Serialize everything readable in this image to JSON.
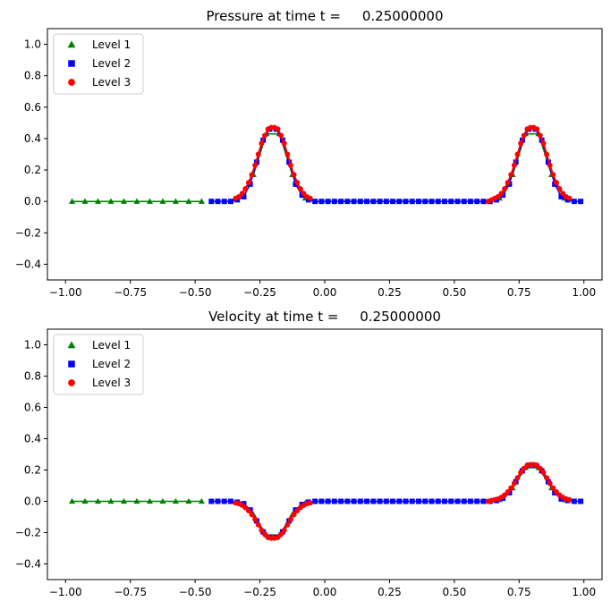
{
  "chart_data": [
    {
      "type": "line",
      "title": "Pressure at time t =     0.25000000",
      "xlabel": "",
      "ylabel": "",
      "xlim": [
        -1.07,
        1.07
      ],
      "ylim": [
        -0.5,
        1.1
      ],
      "xticks": [
        -1.0,
        -0.75,
        -0.5,
        -0.25,
        0.0,
        0.25,
        0.5,
        0.75,
        1.0
      ],
      "xtick_labels": [
        "−1.00",
        "−0.75",
        "−0.50",
        "−0.25",
        "0.00",
        "0.25",
        "0.50",
        "0.75",
        "1.00"
      ],
      "yticks": [
        -0.4,
        -0.2,
        0.0,
        0.2,
        0.4,
        0.6,
        0.8,
        1.0
      ],
      "ytick_labels": [
        "−0.4",
        "−0.2",
        "0.0",
        "0.2",
        "0.4",
        "0.6",
        "0.8",
        "1.0"
      ],
      "legend_position": "top-left",
      "series": [
        {
          "name": "Level 1",
          "marker": "triangle",
          "color": "#008000",
          "x": [
            -0.975,
            -0.925,
            -0.875,
            -0.825,
            -0.775,
            -0.725,
            -0.675,
            -0.625,
            -0.575,
            -0.525,
            -0.475,
            -0.275,
            -0.225,
            -0.175,
            -0.125,
            -0.075,
            0.675,
            0.725,
            0.775,
            0.825,
            0.875,
            0.925
          ],
          "y": [
            0,
            0,
            0,
            0,
            0,
            0,
            0,
            0,
            0,
            0,
            0,
            0.17,
            0.43,
            0.43,
            0.17,
            0.02,
            0.02,
            0.17,
            0.43,
            0.43,
            0.17,
            0.02
          ]
        },
        {
          "name": "Level 2",
          "marker": "square",
          "color": "#0000ff",
          "x": [
            -0.4375,
            -0.4125,
            -0.3875,
            -0.3625,
            -0.3375,
            -0.3125,
            -0.2875,
            -0.2625,
            -0.2375,
            -0.2125,
            -0.1875,
            -0.1625,
            -0.1375,
            -0.1125,
            -0.0875,
            -0.0625,
            -0.0375,
            -0.0125,
            0.0125,
            0.0375,
            0.0625,
            0.0875,
            0.1125,
            0.1375,
            0.1625,
            0.1875,
            0.2125,
            0.2375,
            0.2625,
            0.2875,
            0.3125,
            0.3375,
            0.3625,
            0.3875,
            0.4125,
            0.4375,
            0.4625,
            0.4875,
            0.5125,
            0.5375,
            0.5625,
            0.5875,
            0.6125,
            0.6375,
            0.6625,
            0.6875,
            0.7125,
            0.7375,
            0.7625,
            0.7875,
            0.8125,
            0.8375,
            0.8625,
            0.8875,
            0.9125,
            0.9375,
            0.9625,
            0.9875
          ],
          "y": [
            0,
            0,
            0,
            0,
            0.01,
            0.03,
            0.11,
            0.25,
            0.39,
            0.46,
            0.46,
            0.39,
            0.25,
            0.11,
            0.04,
            0.01,
            0,
            0,
            0,
            0,
            0,
            0,
            0,
            0,
            0,
            0,
            0,
            0,
            0,
            0,
            0,
            0,
            0,
            0,
            0,
            0,
            0,
            0,
            0,
            0,
            0,
            0,
            0,
            0,
            0.01,
            0.04,
            0.11,
            0.25,
            0.39,
            0.46,
            0.46,
            0.39,
            0.25,
            0.11,
            0.03,
            0.01,
            0,
            0
          ]
        },
        {
          "name": "Level 3",
          "marker": "circle",
          "color": "#ff0000",
          "x": [
            -0.34375,
            -0.33125,
            -0.31875,
            -0.30625,
            -0.29375,
            -0.28125,
            -0.26875,
            -0.25625,
            -0.24375,
            -0.23125,
            -0.21875,
            -0.20625,
            -0.19375,
            -0.18125,
            -0.16875,
            -0.15625,
            -0.14375,
            -0.13125,
            -0.11875,
            -0.10625,
            -0.09375,
            -0.08125,
            -0.06875,
            -0.05625,
            0.63125,
            0.64375,
            0.65625,
            0.66875,
            0.68125,
            0.69375,
            0.70625,
            0.71875,
            0.73125,
            0.74375,
            0.75625,
            0.76875,
            0.78125,
            0.79375,
            0.80625,
            0.81875,
            0.83125,
            0.84375,
            0.85625,
            0.86875,
            0.88125,
            0.89375,
            0.90625,
            0.91875,
            0.93125,
            0.94375
          ],
          "y": [
            0.02,
            0.03,
            0.05,
            0.08,
            0.12,
            0.17,
            0.23,
            0.3,
            0.37,
            0.42,
            0.46,
            0.47,
            0.47,
            0.46,
            0.42,
            0.37,
            0.3,
            0.23,
            0.17,
            0.12,
            0.08,
            0.05,
            0.03,
            0.02,
            0.0,
            0.01,
            0.02,
            0.03,
            0.05,
            0.08,
            0.12,
            0.17,
            0.23,
            0.3,
            0.37,
            0.42,
            0.46,
            0.47,
            0.47,
            0.46,
            0.42,
            0.37,
            0.3,
            0.23,
            0.17,
            0.12,
            0.08,
            0.05,
            0.03,
            0.02
          ]
        }
      ]
    },
    {
      "type": "line",
      "title": "Velocity at time t =     0.25000000",
      "xlabel": "",
      "ylabel": "",
      "xlim": [
        -1.07,
        1.07
      ],
      "ylim": [
        -0.5,
        1.1
      ],
      "xticks": [
        -1.0,
        -0.75,
        -0.5,
        -0.25,
        0.0,
        0.25,
        0.5,
        0.75,
        1.0
      ],
      "xtick_labels": [
        "−1.00",
        "−0.75",
        "−0.50",
        "−0.25",
        "0.00",
        "0.25",
        "0.50",
        "0.75",
        "1.00"
      ],
      "yticks": [
        -0.4,
        -0.2,
        0.0,
        0.2,
        0.4,
        0.6,
        0.8,
        1.0
      ],
      "ytick_labels": [
        "−0.4",
        "−0.2",
        "0.0",
        "0.2",
        "0.4",
        "0.6",
        "0.8",
        "1.0"
      ],
      "legend_position": "top-left",
      "series": [
        {
          "name": "Level 1",
          "marker": "triangle",
          "color": "#008000",
          "x": [
            -0.975,
            -0.925,
            -0.875,
            -0.825,
            -0.775,
            -0.725,
            -0.675,
            -0.625,
            -0.575,
            -0.525,
            -0.475,
            -0.275,
            -0.225,
            -0.175,
            -0.125,
            -0.075,
            0.675,
            0.725,
            0.775,
            0.825,
            0.875,
            0.925
          ],
          "y": [
            0,
            0,
            0,
            0,
            0,
            0,
            0,
            0,
            0,
            0,
            0,
            -0.085,
            -0.215,
            -0.215,
            -0.085,
            -0.01,
            0.01,
            0.085,
            0.215,
            0.215,
            0.085,
            0.01
          ]
        },
        {
          "name": "Level 2",
          "marker": "square",
          "color": "#0000ff",
          "x": [
            -0.4375,
            -0.4125,
            -0.3875,
            -0.3625,
            -0.3375,
            -0.3125,
            -0.2875,
            -0.2625,
            -0.2375,
            -0.2125,
            -0.1875,
            -0.1625,
            -0.1375,
            -0.1125,
            -0.0875,
            -0.0625,
            -0.0375,
            -0.0125,
            0.0125,
            0.0375,
            0.0625,
            0.0875,
            0.1125,
            0.1375,
            0.1625,
            0.1875,
            0.2125,
            0.2375,
            0.2625,
            0.2875,
            0.3125,
            0.3375,
            0.3625,
            0.3875,
            0.4125,
            0.4375,
            0.4625,
            0.4875,
            0.5125,
            0.5375,
            0.5625,
            0.5875,
            0.6125,
            0.6375,
            0.6625,
            0.6875,
            0.7125,
            0.7375,
            0.7625,
            0.7875,
            0.8125,
            0.8375,
            0.8625,
            0.8875,
            0.9125,
            0.9375,
            0.9625,
            0.9875
          ],
          "y": [
            0,
            0,
            0,
            0,
            -0.005,
            -0.015,
            -0.055,
            -0.125,
            -0.195,
            -0.23,
            -0.23,
            -0.195,
            -0.125,
            -0.055,
            -0.02,
            -0.005,
            0,
            0,
            0,
            0,
            0,
            0,
            0,
            0,
            0,
            0,
            0,
            0,
            0,
            0,
            0,
            0,
            0,
            0,
            0,
            0,
            0,
            0,
            0,
            0,
            0,
            0,
            0,
            0,
            0.005,
            0.02,
            0.055,
            0.125,
            0.195,
            0.23,
            0.23,
            0.195,
            0.125,
            0.055,
            0.015,
            0.005,
            0,
            0
          ]
        },
        {
          "name": "Level 3",
          "marker": "circle",
          "color": "#ff0000",
          "x": [
            -0.34375,
            -0.33125,
            -0.31875,
            -0.30625,
            -0.29375,
            -0.28125,
            -0.26875,
            -0.25625,
            -0.24375,
            -0.23125,
            -0.21875,
            -0.20625,
            -0.19375,
            -0.18125,
            -0.16875,
            -0.15625,
            -0.14375,
            -0.13125,
            -0.11875,
            -0.10625,
            -0.09375,
            -0.08125,
            -0.06875,
            -0.05625,
            0.63125,
            0.64375,
            0.65625,
            0.66875,
            0.68125,
            0.69375,
            0.70625,
            0.71875,
            0.73125,
            0.74375,
            0.75625,
            0.76875,
            0.78125,
            0.79375,
            0.80625,
            0.81875,
            0.83125,
            0.84375,
            0.85625,
            0.86875,
            0.88125,
            0.89375,
            0.90625,
            0.91875,
            0.93125,
            0.94375
          ],
          "y": [
            -0.01,
            -0.015,
            -0.025,
            -0.04,
            -0.06,
            -0.085,
            -0.115,
            -0.15,
            -0.185,
            -0.21,
            -0.23,
            -0.235,
            -0.235,
            -0.23,
            -0.21,
            -0.185,
            -0.15,
            -0.115,
            -0.085,
            -0.06,
            -0.04,
            -0.025,
            -0.015,
            -0.01,
            0.0,
            0.005,
            0.01,
            0.015,
            0.025,
            0.04,
            0.06,
            0.085,
            0.115,
            0.15,
            0.185,
            0.21,
            0.23,
            0.235,
            0.235,
            0.23,
            0.21,
            0.185,
            0.15,
            0.115,
            0.085,
            0.06,
            0.04,
            0.025,
            0.015,
            0.01
          ]
        }
      ]
    }
  ]
}
